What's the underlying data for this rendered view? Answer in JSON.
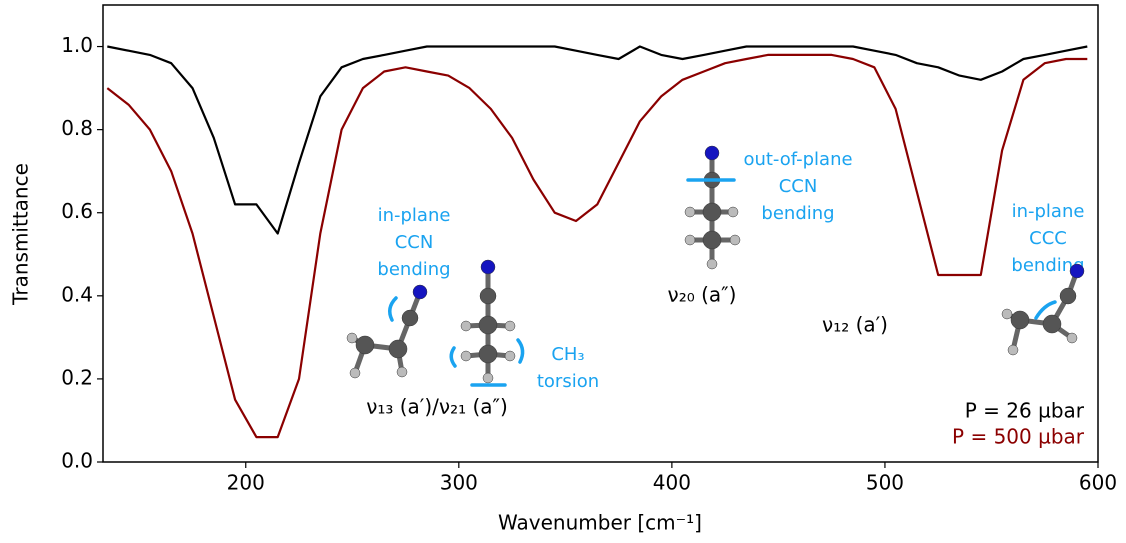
{
  "chart_data": {
    "type": "line",
    "x_label": "Wavenumber [cm⁻¹]",
    "y_label": "Transmittance",
    "x": [
      135,
      145,
      155,
      165,
      175,
      185,
      195,
      205,
      215,
      225,
      235,
      245,
      255,
      265,
      275,
      285,
      295,
      305,
      315,
      325,
      335,
      345,
      355,
      365,
      375,
      385,
      395,
      405,
      415,
      425,
      435,
      445,
      455,
      465,
      475,
      485,
      495,
      505,
      515,
      525,
      535,
      545,
      555,
      565,
      575,
      585,
      595
    ],
    "series": [
      {
        "name": "P = 26 µbar",
        "color": "#000000",
        "values": [
          1.0,
          0.99,
          0.98,
          0.96,
          0.9,
          0.78,
          0.62,
          0.62,
          0.55,
          0.72,
          0.88,
          0.95,
          0.97,
          0.98,
          0.99,
          1.0,
          1.0,
          1.0,
          1.0,
          1.0,
          1.0,
          1.0,
          0.99,
          0.98,
          0.97,
          1.0,
          0.98,
          0.97,
          0.98,
          0.99,
          1.0,
          1.0,
          1.0,
          1.0,
          1.0,
          1.0,
          0.99,
          0.98,
          0.96,
          0.95,
          0.93,
          0.92,
          0.94,
          0.97,
          0.98,
          0.99,
          1.0
        ]
      },
      {
        "name": "P = 500 µbar",
        "color": "#8b0000",
        "values": [
          0.9,
          0.86,
          0.8,
          0.7,
          0.55,
          0.35,
          0.15,
          0.06,
          0.06,
          0.2,
          0.55,
          0.8,
          0.9,
          0.94,
          0.95,
          0.94,
          0.93,
          0.9,
          0.85,
          0.78,
          0.68,
          0.6,
          0.58,
          0.62,
          0.72,
          0.82,
          0.88,
          0.92,
          0.94,
          0.96,
          0.97,
          0.98,
          0.98,
          0.98,
          0.98,
          0.97,
          0.95,
          0.85,
          0.65,
          0.45,
          0.45,
          0.45,
          0.75,
          0.92,
          0.96,
          0.97,
          0.97
        ]
      }
    ],
    "xlim": [
      133,
      600
    ],
    "ylim": [
      0,
      1.1
    ],
    "xticks": [
      200,
      300,
      400,
      500,
      600
    ],
    "yticks": [
      {
        "value": 0,
        "label": "0.0"
      },
      0.2,
      0.4,
      0.6,
      0.8,
      {
        "value": 1,
        "label": "1.0"
      }
    ],
    "legend": "lower right",
    "annotation_color": "#1aa3f0",
    "annotations": [
      {
        "lines": [
          "in-plane",
          "CCN",
          "bending"
        ]
      },
      {
        "lines": [
          "CH₃",
          "torsion"
        ]
      },
      {
        "lines": [
          "out-of-plane",
          "CCN",
          "bending"
        ]
      },
      {
        "lines": [
          "in-plane",
          "CCC",
          "bending"
        ]
      }
    ],
    "mode_labels": [
      "ν₁₃ (a′)/ν₂₁ (a″)",
      "ν₂₀ (a″)",
      "ν₁₂ (a′)"
    ]
  }
}
